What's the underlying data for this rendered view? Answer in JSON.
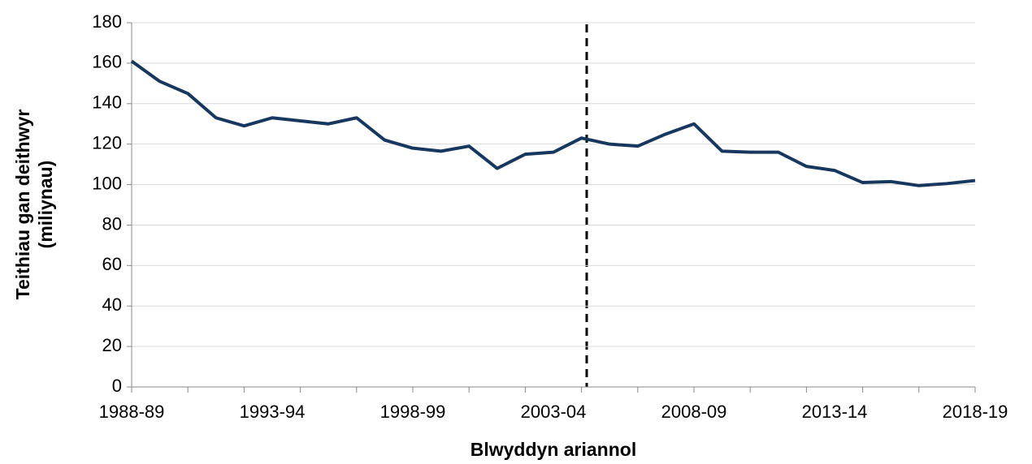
{
  "chart_data": {
    "type": "line",
    "x_label": "Blwyddyn ariannol",
    "y_label": [
      "Teithiau gan deithwyr",
      "(miliynau)"
    ],
    "categories": [
      "1988-89",
      null,
      null,
      null,
      null,
      "1993-94",
      null,
      null,
      null,
      null,
      "1998-99",
      null,
      null,
      null,
      null,
      "2003-04",
      null,
      null,
      null,
      null,
      "2008-09",
      null,
      null,
      null,
      null,
      "2013-14",
      null,
      null,
      null,
      null,
      "2018-19"
    ],
    "series": [
      {
        "color": "#17375e",
        "values": [
          161,
          151,
          145,
          133,
          129,
          133,
          131.5,
          130,
          133,
          122,
          118,
          116.5,
          119,
          108,
          115,
          116,
          123,
          120,
          119,
          125,
          130,
          116.5,
          116,
          116,
          109,
          107,
          101,
          101.5,
          99.5,
          100.5,
          102
        ]
      }
    ],
    "ylim": [
      0,
      180
    ],
    "yticks": [
      0,
      20,
      40,
      60,
      80,
      100,
      120,
      140,
      160,
      180
    ],
    "grid": true
  }
}
